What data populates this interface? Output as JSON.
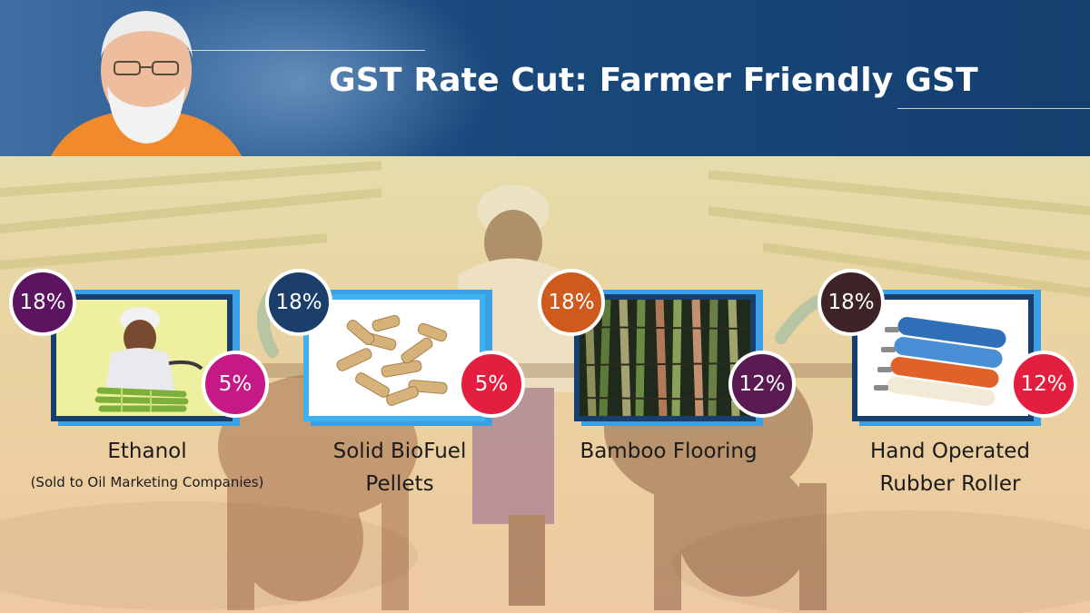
{
  "header": {
    "title": "GST Rate Cut: Farmer Friendly GST"
  },
  "colors": {
    "header_bg": "#1a4a7e",
    "frame_dark": "#173f6e",
    "frame_light": "#41b0ee",
    "old_rate_purple": "#5c1360",
    "old_rate_navy": "#1b3f6a",
    "old_rate_orange": "#cf5a1e",
    "old_rate_maroon": "#3e2326",
    "new_rate_magenta": "#c51a86",
    "new_rate_red": "#e41e3f",
    "new_rate_plum": "#5a1a52"
  },
  "items": [
    {
      "name": "Ethanol",
      "note": "(Sold to Oil Marketing Companies)",
      "old_rate": "18%",
      "new_rate": "5%",
      "image_icon": "farmer-sugarcane-icon"
    },
    {
      "name_line1": "Solid BioFuel",
      "name_line2": "Pellets",
      "old_rate": "18%",
      "new_rate": "5%",
      "image_icon": "wood-pellets-icon"
    },
    {
      "name": "Bamboo Flooring",
      "old_rate": "18%",
      "new_rate": "12%",
      "image_icon": "bamboo-icon"
    },
    {
      "name_line1": "Hand Operated",
      "name_line2": "Rubber Roller",
      "old_rate": "18%",
      "new_rate": "12%",
      "image_icon": "rubber-roller-icon"
    }
  ]
}
